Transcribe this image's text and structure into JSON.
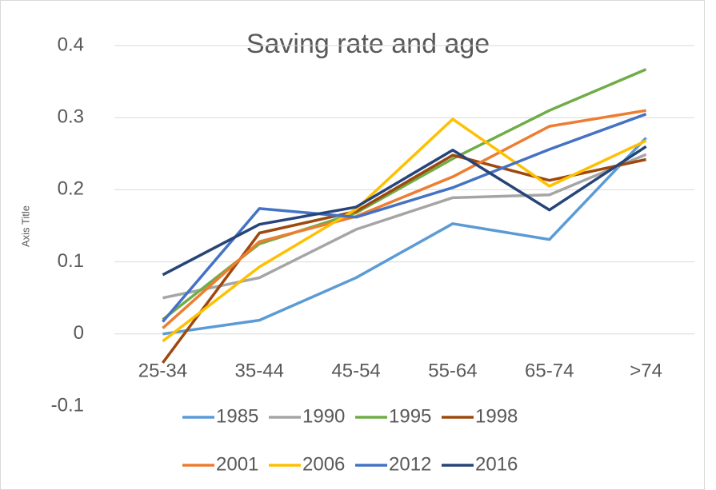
{
  "chart_data": {
    "type": "line",
    "title": "Saving rate and age",
    "y_label": "Axis Title",
    "categories": [
      "25-34",
      "35-44",
      "45-54",
      "55-64",
      "65-74",
      ">74"
    ],
    "series": [
      {
        "name": "1985",
        "color": "#5b9bd5",
        "values": [
          0.0,
          0.019,
          0.078,
          0.153,
          0.131,
          0.272
        ]
      },
      {
        "name": "1990",
        "color": "#a5a5a5",
        "values": [
          0.05,
          0.078,
          0.145,
          0.189,
          0.193,
          0.249
        ]
      },
      {
        "name": "1995",
        "color": "#70ad47",
        "values": [
          0.02,
          0.125,
          0.168,
          0.243,
          0.31,
          0.367
        ]
      },
      {
        "name": "1998",
        "color": "#9e480e",
        "values": [
          -0.04,
          0.14,
          0.17,
          0.248,
          0.213,
          0.242
        ]
      },
      {
        "name": "2001",
        "color": "#ed7d31",
        "values": [
          0.008,
          0.128,
          0.163,
          0.218,
          0.288,
          0.31
        ]
      },
      {
        "name": "2006",
        "color": "#ffc000",
        "values": [
          -0.01,
          0.093,
          0.173,
          0.298,
          0.205,
          0.268
        ]
      },
      {
        "name": "2012",
        "color": "#4472c4",
        "values": [
          0.017,
          0.174,
          0.162,
          0.203,
          0.256,
          0.305
        ]
      },
      {
        "name": "2016",
        "color": "#264478",
        "values": [
          0.082,
          0.152,
          0.176,
          0.255,
          0.172,
          0.26
        ]
      }
    ],
    "ylim": [
      -0.1,
      0.4
    ],
    "yticks": [
      -0.1,
      0,
      0.1,
      0.2,
      0.3,
      0.4
    ],
    "grid": true,
    "legend": "bottom"
  }
}
